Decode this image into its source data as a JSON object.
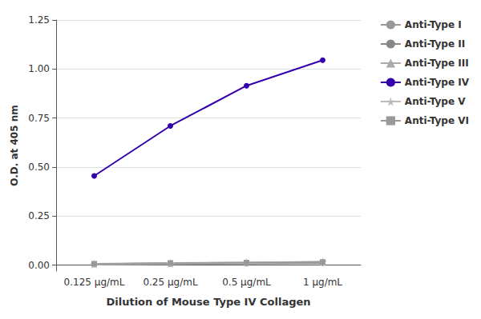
{
  "chart_data": {
    "type": "line",
    "xlabel": "Dilution of Mouse Type IV Collagen",
    "ylabel": "O.D. at 405 nm",
    "categories": [
      "0.125 μg/mL",
      "0.25 μg/mL",
      "0.5 μg/mL",
      "1 μg/mL"
    ],
    "series": [
      {
        "name": "Anti-Type I",
        "color": "#999999",
        "marker": "circle",
        "values": [
          0.004,
          0.006,
          0.008,
          0.01
        ]
      },
      {
        "name": "Anti-Type II",
        "color": "#888888",
        "marker": "circle",
        "values": [
          0.005,
          0.01,
          0.012,
          0.014
        ]
      },
      {
        "name": "Anti-Type III",
        "color": "#aaaaaa",
        "marker": "triangle",
        "values": [
          0.004,
          0.008,
          0.012,
          0.015
        ]
      },
      {
        "name": "Anti-Type IV",
        "color": "#3300aa",
        "marker": "circle",
        "values": [
          0.455,
          0.71,
          0.915,
          1.045
        ]
      },
      {
        "name": "Anti-Type V",
        "color": "#bbbbbb",
        "marker": "star",
        "values": [
          0.006,
          0.009,
          0.013,
          0.018
        ]
      },
      {
        "name": "Anti-Type VI",
        "color": "#999999",
        "marker": "square",
        "values": [
          0.007,
          0.011,
          0.013,
          0.016
        ]
      }
    ],
    "ylim": [
      -0.03,
      1.25
    ],
    "yticks": [
      {
        "value": 0,
        "label": "0.00"
      },
      0.25,
      {
        "value": 0.5,
        "label": "0.50"
      },
      0.75,
      {
        "value": 1,
        "label": "1.00"
      },
      1.25
    ],
    "grid": true,
    "legend": "upper right"
  }
}
